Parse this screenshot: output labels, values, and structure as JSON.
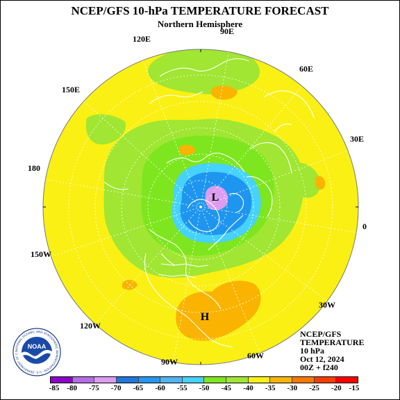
{
  "title": "NCEP/GFS 10-hPa TEMPERATURE FORECAST",
  "subtitle": "Northern Hemisphere",
  "lon_labels": [
    "90E",
    "120E",
    "60E",
    "150E",
    "30E",
    "180",
    "0",
    "150W",
    "30W",
    "120W",
    "60W",
    "90W"
  ],
  "lows": [
    "L"
  ],
  "highs": [
    "H"
  ],
  "info": {
    "line1": "NCEP/GFS",
    "line2": "TEMPERATURE",
    "line3": "10 hPa",
    "line4": "Oct 12, 2024",
    "line5": "00Z + f240"
  },
  "legend": {
    "labels": [
      "-85",
      "-80",
      "-75",
      "-70",
      "-65",
      "-60",
      "-55",
      "-50",
      "-45",
      "-40",
      "-35",
      "-30",
      "-25",
      "-20",
      "-15"
    ],
    "colors": [
      "#8c00c8",
      "#b46ee6",
      "#dc9cf0",
      "#1e78dc",
      "#2896f0",
      "#50b4f0",
      "#46d2fa",
      "#7ee61e",
      "#a0e632",
      "#faf014",
      "#fab400",
      "#fa7800",
      "#fa3c00",
      "#fa0000",
      "#783c28"
    ]
  },
  "logo": {
    "text": "NOAA",
    "ring_text": "NATIONAL OCEANIC AND ATMOSPHERIC ADMINISTRATION · U.S. DEPARTMENT OF COMMERCE"
  },
  "colors": {
    "yellow": "#faf014",
    "light_green": "#a0e632",
    "green": "#7ee61e",
    "cyan": "#46d2fa",
    "blue": "#1e96f0",
    "pink": "#dc9cf0",
    "orange": "#fab400"
  }
}
